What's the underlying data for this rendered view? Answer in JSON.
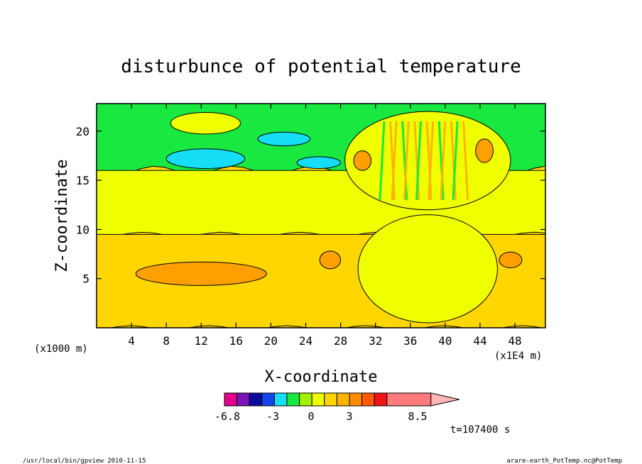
{
  "chart_data": {
    "type": "heatmap",
    "title": "disturbunce of potential temperature",
    "xlabel": "X-coordinate",
    "ylabel": "Z-coordinate",
    "x_unit_left": "(x1000 m)",
    "x_unit_right": "(x1E4 m)",
    "x_ticks": [
      "4",
      "8",
      "12",
      "16",
      "20",
      "24",
      "28",
      "32",
      "36",
      "40",
      "44",
      "48"
    ],
    "x_tick_values": [
      4,
      8,
      12,
      16,
      20,
      24,
      28,
      32,
      36,
      40,
      44,
      48
    ],
    "y_ticks": [
      "5",
      "10",
      "15",
      "20"
    ],
    "y_tick_values": [
      5,
      10,
      15,
      20
    ],
    "xlim": [
      0,
      51.5
    ],
    "ylim": [
      0,
      22.8
    ],
    "background_level": 1.5,
    "layers": [
      {
        "level": -1.0,
        "z_top": 22.8,
        "z_bottom": 16.0
      },
      {
        "level": 0.5,
        "z_top": 16.0,
        "z_bottom": 9.5
      },
      {
        "level": 1.5,
        "z_top": 9.5,
        "z_bottom": 0
      }
    ],
    "features": [
      {
        "level": 0.5,
        "x": 12.5,
        "z": 20.8,
        "rx": 4.0,
        "rz": 1.1
      },
      {
        "level": -2.0,
        "x": 12.5,
        "z": 17.2,
        "rx": 4.5,
        "rz": 1.0
      },
      {
        "level": 2.2,
        "x": 12.0,
        "z": 5.5,
        "rx": 7.5,
        "rz": 1.2
      },
      {
        "level": 2.2,
        "x": 26.8,
        "z": 6.9,
        "rx": 1.2,
        "rz": 0.9
      },
      {
        "level": 2.2,
        "x": 47.5,
        "z": 6.9,
        "rx": 1.3,
        "rz": 0.8
      },
      {
        "level": -2.0,
        "x": 21.5,
        "z": 19.2,
        "rx": 3.0,
        "rz": 0.7
      },
      {
        "level": -2.0,
        "x": 25.5,
        "z": 16.8,
        "rx": 2.5,
        "rz": 0.6
      },
      {
        "level": 0.5,
        "x": 38.0,
        "z": 6.0,
        "rx": 8.0,
        "rz": 5.5
      },
      {
        "level": 0.5,
        "x": 38.0,
        "z": 17.0,
        "rx": 9.5,
        "rz": 5.0
      },
      {
        "level": 2.2,
        "x": 30.5,
        "z": 17.0,
        "rx": 1.0,
        "rz": 1.0
      },
      {
        "level": 2.2,
        "x": 44.5,
        "z": 18.0,
        "rx": 1.0,
        "rz": 1.2
      }
    ],
    "colorbar": {
      "colors": [
        "#e4008c",
        "#7a14b8",
        "#0a0aa0",
        "#1446ea",
        "#14ddf5",
        "#18e840",
        "#a4f000",
        "#f0ff00",
        "#ffd600",
        "#ffb400",
        "#ff8c00",
        "#ff5a00",
        "#f01414",
        "#ff7a7a",
        "#ffb6b6"
      ],
      "tick_labels": [
        "-6.8",
        "-3",
        "0",
        "3",
        "8.5"
      ]
    },
    "annotation_time": "t=107400 s"
  },
  "footer": {
    "left": "/usr/local/bin/gpview  2010-11-15",
    "right": "arare-earth_PotTemp.nc@PotTemp"
  }
}
